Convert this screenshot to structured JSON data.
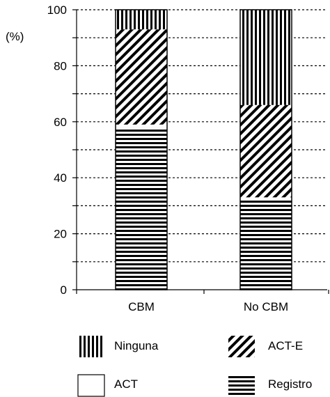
{
  "chart_data": {
    "type": "bar",
    "stacked": true,
    "y_unit_label": "(%)",
    "ylim": [
      0,
      100
    ],
    "yticks": [
      0,
      20,
      40,
      60,
      80,
      100
    ],
    "minor_grid_step": 10,
    "grid": "dotted-horizontal",
    "categories": [
      "CBM",
      "No CBM"
    ],
    "series": [
      {
        "name": "Registro",
        "pattern": "horizontal-lines",
        "values": [
          58,
          32
        ]
      },
      {
        "name": "ACT",
        "pattern": "none",
        "values": [
          1,
          1
        ]
      },
      {
        "name": "ACT-E",
        "pattern": "diagonal-lines",
        "values": [
          34,
          33
        ]
      },
      {
        "name": "Ninguna",
        "pattern": "vertical-lines",
        "values": [
          7,
          34
        ]
      }
    ],
    "legend_order": [
      "Ninguna",
      "ACT-E",
      "ACT",
      "Registro"
    ],
    "legend_placement": "bottom"
  }
}
